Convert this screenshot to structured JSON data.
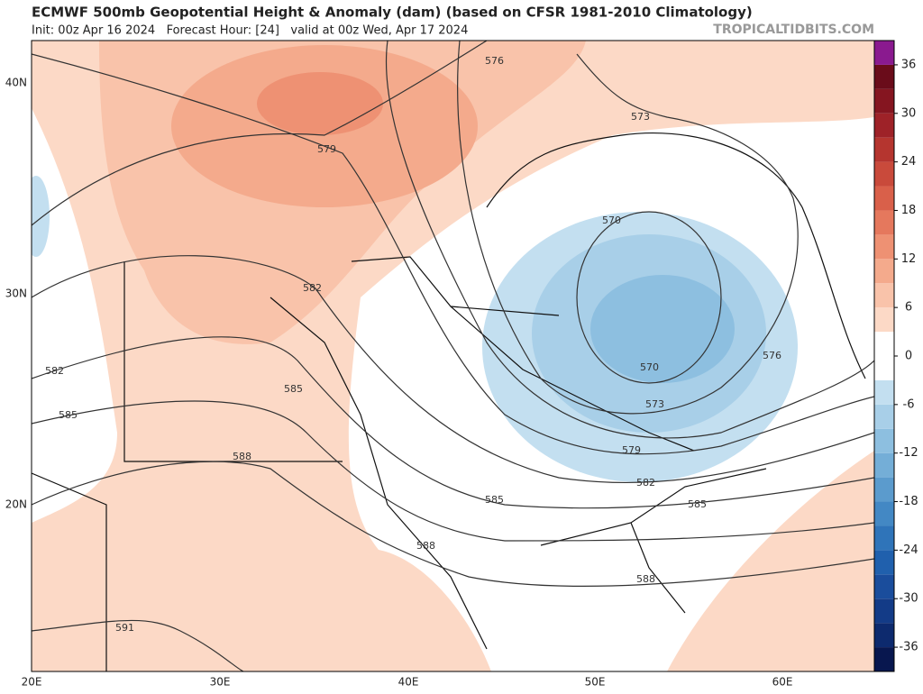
{
  "header": {
    "title": "ECMWF 500mb Geopotential Height & Anomaly (dam) (based on CFSR 1981-2010 Climatology)",
    "subtitle": "Init: 00z Apr 16 2024   Forecast Hour: [24]   valid at 00z Wed, Apr 17 2024",
    "source": "TROPICALTIDBITS.COM"
  },
  "map": {
    "lon_labels": [
      "20E",
      "30E",
      "40E",
      "50E",
      "60E"
    ],
    "lat_labels": [
      "40N",
      "30N",
      "20N"
    ],
    "contour_labels": [
      "576",
      "573",
      "579",
      "582",
      "570",
      "570",
      "576",
      "573",
      "579",
      "582",
      "585",
      "585",
      "588",
      "588",
      "582",
      "585",
      "585",
      "588",
      "591"
    ]
  },
  "colorbar": {
    "lim": [
      -39,
      39
    ],
    "ticks": [
      36,
      30,
      24,
      18,
      12,
      6,
      0,
      -6,
      -12,
      -18,
      -24,
      -30,
      -36
    ],
    "colors": [
      "#08174f",
      "#0d2a6e",
      "#133b87",
      "#1a4d9c",
      "#2060ad",
      "#2f74b9",
      "#4388c4",
      "#5b9bcd",
      "#74aed7",
      "#8dbfe0",
      "#a8cfe8",
      "#c3dff0",
      "#ffffff",
      "#ffffff",
      "#fcd9c6",
      "#f9c3aa",
      "#f4aa8c",
      "#ee9173",
      "#e5785d",
      "#d9604a",
      "#c94a3b",
      "#b5352f",
      "#9e2228",
      "#851520",
      "#6a0c1a",
      "#8a1a8f"
    ]
  }
}
